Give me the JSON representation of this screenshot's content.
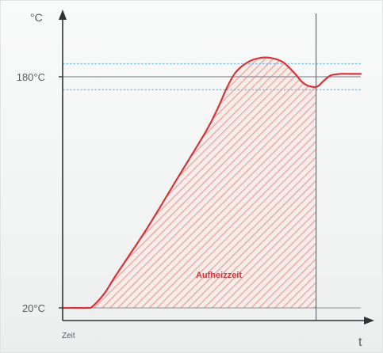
{
  "chart_data": {
    "type": "line",
    "title": "",
    "ylabel": "°C",
    "xlabel": "t",
    "x_start_label": "Zeit",
    "ylim": [
      20,
      198
    ],
    "xlim": [
      0,
      100
    ],
    "y_ticks": [
      {
        "value": 180,
        "label": "180°C"
      },
      {
        "value": 20,
        "label": "20°C"
      }
    ],
    "tolerance_band": [
      189,
      171
    ],
    "setpoint": 180,
    "marker_x": 85,
    "shaded_region": {
      "from": 0,
      "to": 85,
      "label": "Aufheizzeit"
    },
    "series": [
      {
        "values_x": [
          0,
          8,
          10,
          14,
          18,
          28,
          38,
          48,
          52,
          55,
          58,
          62,
          66,
          70,
          74,
          78,
          80,
          82,
          84,
          85,
          86,
          88,
          90,
          93,
          96,
          100
        ],
        "values_y": [
          20,
          20,
          21,
          30,
          43,
          74,
          108,
          142,
          158,
          172,
          183,
          190,
          193,
          193,
          190,
          182,
          177,
          174,
          173,
          173,
          174,
          178,
          181,
          182,
          182,
          182
        ]
      }
    ],
    "grid": false,
    "legend": "none"
  },
  "colors": {
    "axis": "#2f3336",
    "curve": "#d6343a",
    "hatch": "#eba9a3",
    "band": "#7cc1e8",
    "setpoint": "#8c8f92",
    "marker": "#6b6e71",
    "fill_label": "#d6343a"
  }
}
